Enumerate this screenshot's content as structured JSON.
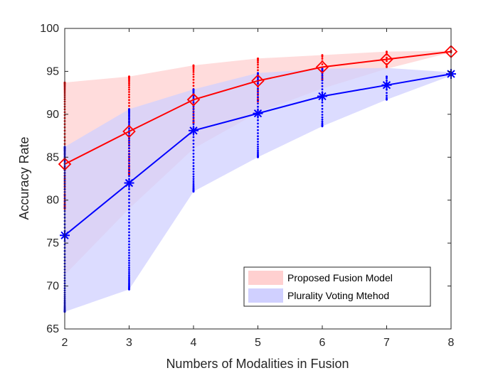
{
  "chart_data": {
    "type": "line",
    "title": "",
    "xlabel": "Numbers of Modalities in Fusion",
    "ylabel": "Accuracy Rate",
    "xlim": [
      2,
      8
    ],
    "ylim": [
      65,
      100
    ],
    "xticks": [
      2,
      3,
      4,
      5,
      6,
      7,
      8
    ],
    "yticks": [
      65,
      70,
      75,
      80,
      85,
      90,
      95,
      100
    ],
    "x": [
      2,
      3,
      4,
      5,
      6,
      7,
      8
    ],
    "legend_location": "bottom-right",
    "series": [
      {
        "name": "Proposed Fusion Model",
        "color": "#ff0000",
        "band_color": "#ffd0d0",
        "marker": "diamond",
        "values": [
          84.2,
          88.0,
          91.7,
          93.9,
          95.5,
          96.4,
          97.3
        ],
        "band_upper": [
          93.7,
          94.4,
          95.7,
          96.5,
          96.9,
          97.3,
          97.4
        ],
        "band_lower": [
          71.3,
          79.0,
          86.0,
          90.2,
          93.0,
          95.3,
          97.2
        ],
        "scatter_min": [
          79.0,
          83.0,
          89.0,
          91.5,
          94.0,
          95.5,
          97.2
        ],
        "scatter_max": [
          93.7,
          94.4,
          95.7,
          96.5,
          96.9,
          97.3,
          97.4
        ]
      },
      {
        "name": "Plurality Voting Mtehod",
        "color": "#0000ff",
        "band_color": "#d0d0ff",
        "marker": "asterisk",
        "values": [
          75.9,
          82.0,
          88.1,
          90.1,
          92.1,
          93.4,
          94.7
        ],
        "band_upper": [
          86.2,
          90.6,
          92.9,
          94.8,
          95.3,
          95.4,
          94.9
        ],
        "band_lower": [
          67.0,
          69.6,
          81.0,
          85.0,
          88.6,
          91.7,
          94.5
        ],
        "scatter_min": [
          67.0,
          69.6,
          81.0,
          85.0,
          88.6,
          91.7,
          94.5
        ],
        "scatter_max": [
          86.2,
          90.6,
          92.9,
          94.8,
          95.3,
          94.4,
          94.9
        ]
      }
    ]
  }
}
